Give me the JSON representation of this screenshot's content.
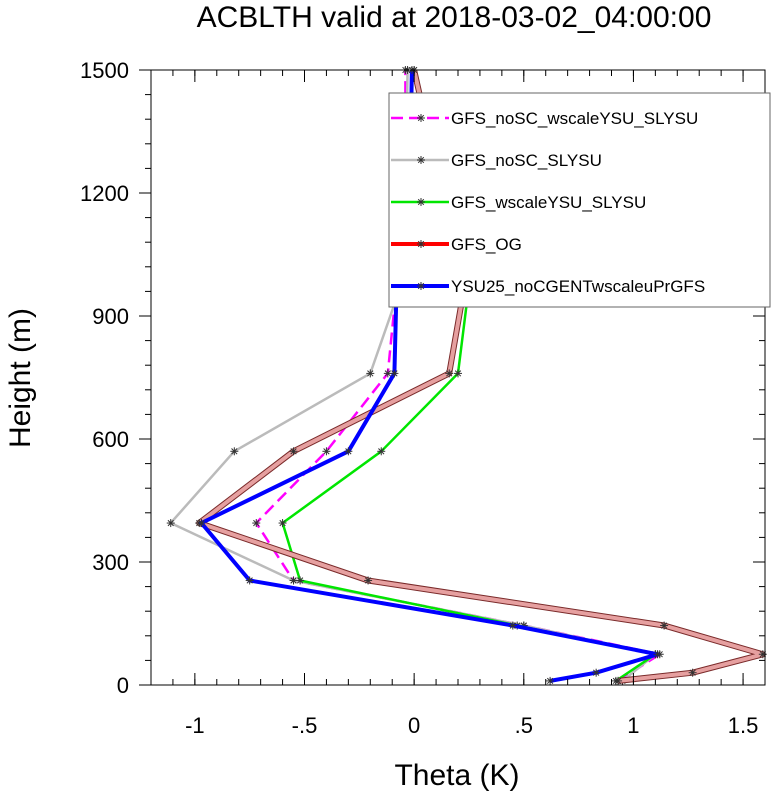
{
  "chart_data": {
    "type": "line",
    "title": "ACBLTH valid at 2018-03-02_04:00:00",
    "xlabel": "Theta (K)",
    "ylabel": "Height (m)",
    "xlim": [
      -1.2,
      1.6
    ],
    "ylim": [
      0,
      1500
    ],
    "x_ticks": [
      -1,
      -0.5,
      0,
      0.5,
      1,
      1.5
    ],
    "x_tick_labels": [
      "-1",
      "-.5",
      "0",
      ".5",
      "1",
      "1.5"
    ],
    "y_ticks": [
      0,
      300,
      600,
      900,
      1200,
      1500
    ],
    "y_tick_labels": [
      "0",
      "300",
      "600",
      "900",
      "1200",
      "1500"
    ],
    "grid": false,
    "legend_position": "top-right",
    "series": [
      {
        "name": "GFS_noSC_wscaleYSU_SLYSU",
        "color": "#ff00ff",
        "dash": "dashed",
        "points": [
          [
            0.93,
            10
          ],
          [
            1.12,
            75
          ],
          [
            0.5,
            145
          ],
          [
            -0.55,
            255
          ],
          [
            -0.72,
            395
          ],
          [
            -0.4,
            570
          ],
          [
            -0.12,
            760
          ],
          [
            -0.08,
            975
          ],
          [
            -0.04,
            1215
          ],
          [
            -0.04,
            1500
          ]
        ]
      },
      {
        "name": "GFS_noSC_SLYSU",
        "color": "#bbbbbb",
        "dash": "solid",
        "points": [
          [
            0.95,
            10
          ],
          [
            1.1,
            75
          ],
          [
            0.5,
            145
          ],
          [
            -0.55,
            255
          ],
          [
            -1.11,
            395
          ],
          [
            -0.82,
            570
          ],
          [
            -0.2,
            760
          ],
          [
            -0.06,
            975
          ],
          [
            -0.04,
            1215
          ],
          [
            -0.03,
            1500
          ]
        ]
      },
      {
        "name": "GFS_wscaleYSU_SLYSU",
        "color": "#00e600",
        "dash": "solid",
        "points": [
          [
            0.92,
            10
          ],
          [
            1.1,
            75
          ],
          [
            0.47,
            145
          ],
          [
            -0.52,
            255
          ],
          [
            -0.6,
            395
          ],
          [
            -0.15,
            570
          ],
          [
            0.2,
            760
          ],
          [
            0.25,
            975
          ],
          [
            0.12,
            1215
          ],
          [
            0.0,
            1500
          ]
        ]
      },
      {
        "name": "GFS_OG",
        "color": "#ff0000",
        "dash": "solid",
        "points": [
          [
            0.93,
            10
          ],
          [
            1.27,
            30
          ],
          [
            1.59,
            75
          ],
          [
            1.14,
            145
          ],
          [
            -0.21,
            255
          ],
          [
            -0.98,
            395
          ],
          [
            -0.55,
            570
          ],
          [
            0.16,
            760
          ],
          [
            0.23,
            975
          ],
          [
            0.12,
            1215
          ],
          [
            0.0,
            1500
          ]
        ]
      },
      {
        "name": "YSU25_noCGENTwscaleuPrGFS",
        "color": "#0000ff",
        "dash": "solid",
        "points": [
          [
            0.62,
            10
          ],
          [
            0.83,
            30
          ],
          [
            1.11,
            75
          ],
          [
            0.45,
            145
          ],
          [
            -0.75,
            255
          ],
          [
            -0.97,
            395
          ],
          [
            -0.3,
            570
          ],
          [
            -0.09,
            760
          ],
          [
            -0.08,
            975
          ],
          [
            -0.02,
            1215
          ],
          [
            -0.01,
            1500
          ]
        ]
      }
    ]
  }
}
